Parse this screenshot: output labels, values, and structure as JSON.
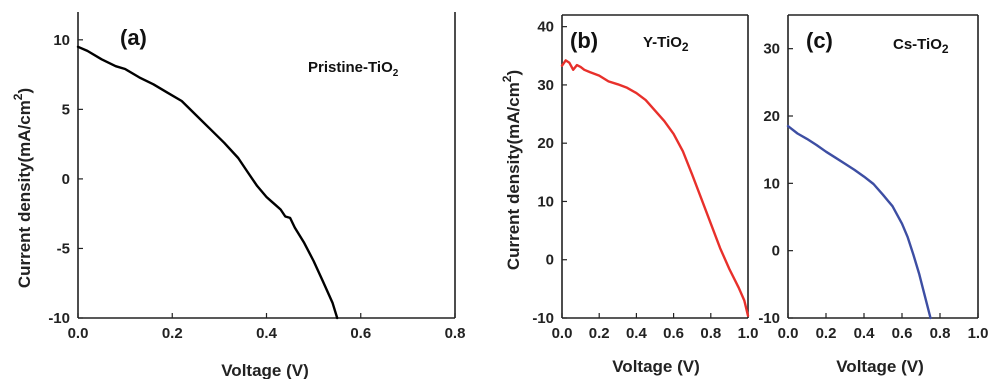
{
  "chart_data": [
    {
      "type": "line",
      "panel_label": "(a)",
      "series_label": {
        "main": "Pristine-TiO",
        "subscript": "2"
      },
      "xlabel": "Voltage (V)",
      "ylabel": {
        "main": "Current density(mA/cm",
        "superscript": "2",
        "end": ")"
      },
      "xlim": [
        0,
        0.8
      ],
      "ylim": [
        -10,
        12
      ],
      "xticks": [
        "0.0",
        "0.2",
        "0.4",
        "0.6",
        "0.8"
      ],
      "yticks": [
        "10",
        "5",
        "0",
        "-5",
        "-10"
      ],
      "color": "#000000",
      "series": [
        {
          "x": [
            0.0,
            0.02,
            0.05,
            0.08,
            0.1,
            0.13,
            0.16,
            0.19,
            0.22,
            0.25,
            0.28,
            0.31,
            0.34,
            0.36,
            0.38,
            0.4,
            0.41,
            0.42,
            0.43,
            0.44,
            0.45,
            0.46,
            0.48,
            0.5,
            0.52,
            0.54,
            0.55
          ],
          "y": [
            9.5,
            9.2,
            8.6,
            8.1,
            7.9,
            7.3,
            6.8,
            6.2,
            5.6,
            4.6,
            3.6,
            2.6,
            1.5,
            0.5,
            -0.5,
            -1.3,
            -1.6,
            -1.9,
            -2.2,
            -2.7,
            -2.8,
            -3.5,
            -4.6,
            -5.9,
            -7.4,
            -8.9,
            -10.0
          ]
        }
      ]
    },
    {
      "type": "line",
      "panel_label": "(b)",
      "series_label": {
        "main": "Y-TiO",
        "subscript": "2"
      },
      "xlabel": "Voltage (V)",
      "ylabel": {
        "main": "Current density(mA/cm",
        "superscript": "2",
        "end": ")"
      },
      "xlim": [
        0,
        1.0
      ],
      "ylim": [
        -10,
        42
      ],
      "xticks": [
        "0.0",
        "0.2",
        "0.4",
        "0.6",
        "0.8",
        "1.0"
      ],
      "yticks": [
        "40",
        "30",
        "20",
        "10",
        "0",
        "-10"
      ],
      "color": "#e8302b",
      "series": [
        {
          "x": [
            0.0,
            0.02,
            0.04,
            0.06,
            0.08,
            0.1,
            0.12,
            0.15,
            0.2,
            0.25,
            0.3,
            0.35,
            0.4,
            0.45,
            0.5,
            0.55,
            0.6,
            0.65,
            0.7,
            0.75,
            0.8,
            0.85,
            0.9,
            0.95,
            0.98,
            1.0
          ],
          "y": [
            33.3,
            34.2,
            33.8,
            32.6,
            33.4,
            33.1,
            32.6,
            32.2,
            31.6,
            30.6,
            30.1,
            29.5,
            28.6,
            27.4,
            25.6,
            23.8,
            21.6,
            18.6,
            14.6,
            10.4,
            6.2,
            2.0,
            -1.6,
            -4.8,
            -7.0,
            -9.6
          ]
        }
      ]
    },
    {
      "type": "line",
      "panel_label": "(c)",
      "series_label": {
        "main": "Cs-TiO",
        "subscript": "2"
      },
      "xlabel": "Voltage (V)",
      "xlim": [
        0,
        1.0
      ],
      "ylim": [
        -10,
        35
      ],
      "xticks": [
        "0.0",
        "0.2",
        "0.4",
        "0.6",
        "0.8",
        "1.0"
      ],
      "yticks": [
        "30",
        "20",
        "10",
        "0",
        "-10"
      ],
      "color": "#3d4ea3",
      "series": [
        {
          "x": [
            0.0,
            0.05,
            0.1,
            0.15,
            0.2,
            0.25,
            0.3,
            0.35,
            0.4,
            0.45,
            0.5,
            0.55,
            0.6,
            0.63,
            0.66,
            0.69,
            0.71,
            0.73,
            0.75
          ],
          "y": [
            18.5,
            17.4,
            16.6,
            15.7,
            14.7,
            13.8,
            12.9,
            12.0,
            11.0,
            9.9,
            8.3,
            6.6,
            4.0,
            2.0,
            -0.6,
            -3.4,
            -5.6,
            -7.8,
            -10.0
          ]
        }
      ]
    }
  ]
}
